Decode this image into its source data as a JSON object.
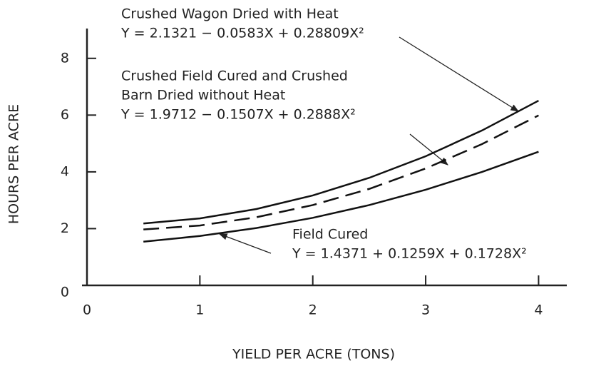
{
  "chart_data": {
    "type": "line",
    "x_label": "YIELD PER ACRE (TONS)",
    "y_label": "HOURS PER ACRE",
    "x": [
      0.5,
      1,
      1.5,
      2,
      2.5,
      3,
      3.5,
      4
    ],
    "series": [
      {
        "label_lines": [
          "Crushed Wagon Dried with Heat"
        ],
        "equation": "Y = 2.1321 − 0.0583X + 0.28809X²",
        "color": "#111111",
        "line_style": "solid",
        "values": [
          2.18,
          2.36,
          2.69,
          3.17,
          3.79,
          4.55,
          5.46,
          6.51
        ]
      },
      {
        "label_lines": [
          "Crushed Field Cured and Crushed",
          "Barn Dried without Heat"
        ],
        "equation": "Y = 1.9712 − 0.1507X + 0.2888X²",
        "color": "#111111",
        "line_style": "dashed",
        "values": [
          1.97,
          2.11,
          2.4,
          2.83,
          3.4,
          4.12,
          4.98,
          5.99
        ]
      },
      {
        "label_lines": [
          "Field Cured"
        ],
        "equation": "Y = 1.4371 + 0.1259X + 0.1728X²",
        "color": "#111111",
        "line_style": "solid",
        "values": [
          1.54,
          1.74,
          2.02,
          2.38,
          2.83,
          3.37,
          4.0,
          4.71
        ]
      }
    ],
    "xlim": [
      0,
      4.25
    ],
    "ylim": [
      0,
      9
    ],
    "xticks": [
      0,
      1,
      2,
      3,
      4
    ],
    "yticks": [
      0,
      2,
      4,
      6,
      8
    ],
    "grid": false
  }
}
